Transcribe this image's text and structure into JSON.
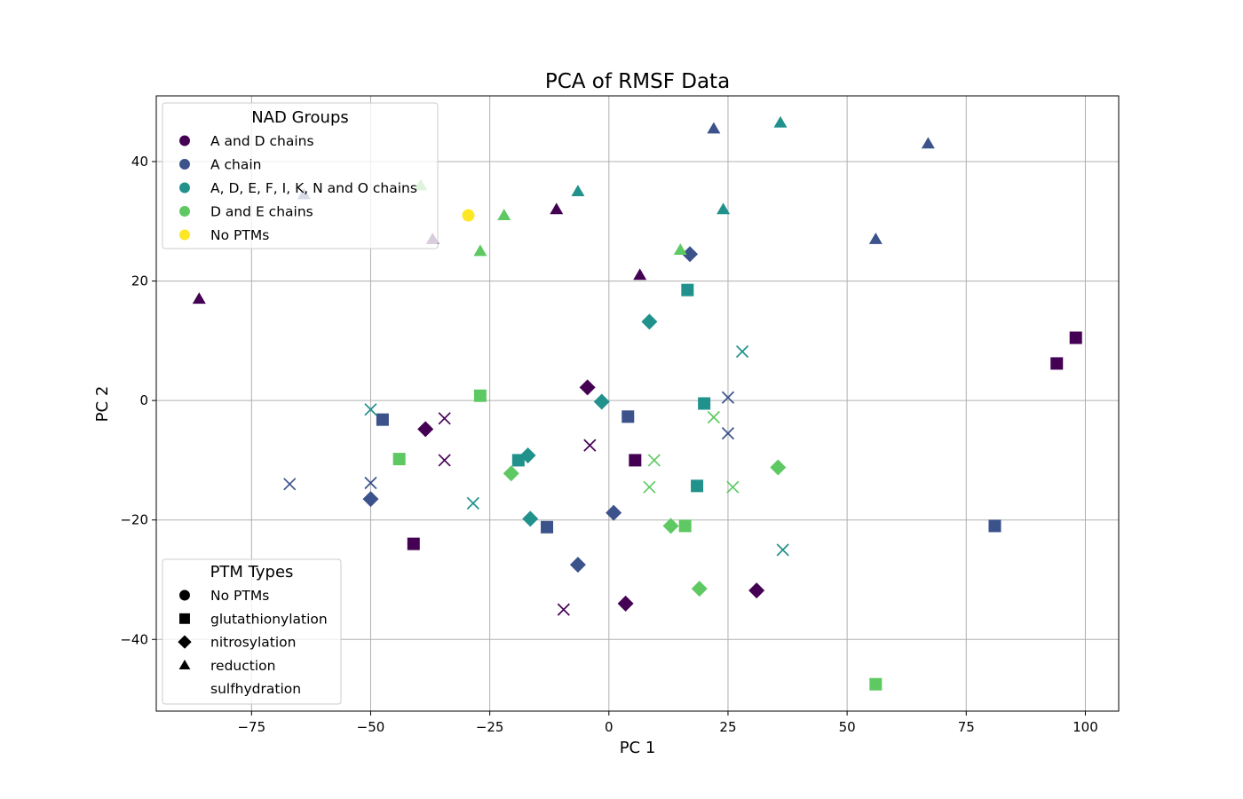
{
  "chart_data": {
    "type": "scatter",
    "title": "PCA of RMSF Data",
    "xlabel": "PC 1",
    "ylabel": "PC 2",
    "xlim": [
      -95,
      107
    ],
    "ylim": [
      -52,
      51
    ],
    "xticks": [
      -75,
      -50,
      -25,
      0,
      25,
      50,
      75,
      100
    ],
    "yticks": [
      -40,
      -20,
      0,
      20,
      40
    ],
    "xtick_labels": [
      "−75",
      "−50",
      "−25",
      "0",
      "25",
      "50",
      "75",
      "100"
    ],
    "ytick_labels": [
      "−40",
      "−20",
      "0",
      "20",
      "40"
    ],
    "grid": true,
    "legends": [
      {
        "title": "NAD Groups",
        "placement": "top-left",
        "entries": [
          {
            "label": "A and D chains",
            "color": "#440154"
          },
          {
            "label": "A chain",
            "color": "#3b528b"
          },
          {
            "label": "A, D, E, F, I, K, N and O chains",
            "color": "#21918c"
          },
          {
            "label": "D and E chains",
            "color": "#5ec962"
          },
          {
            "label": "No PTMs",
            "color": "#fde725"
          }
        ]
      },
      {
        "title": "PTM Types",
        "placement": "lower-left",
        "entries": [
          {
            "label": "No PTMs",
            "marker": "circle"
          },
          {
            "label": "glutathionylation",
            "marker": "square"
          },
          {
            "label": "nitrosylation",
            "marker": "diamond"
          },
          {
            "label": "reduction",
            "marker": "triangle"
          },
          {
            "label": "sulfhydration",
            "marker": "x"
          }
        ]
      }
    ],
    "series": [
      {
        "name": "A and D chains",
        "color": "#440154",
        "points": [
          {
            "x": -86,
            "y": 17,
            "marker": "triangle"
          },
          {
            "x": -37,
            "y": 27,
            "marker": "triangle"
          },
          {
            "x": -11,
            "y": 32,
            "marker": "triangle"
          },
          {
            "x": 6.5,
            "y": 21,
            "marker": "triangle"
          },
          {
            "x": -4.5,
            "y": 2.2,
            "marker": "diamond"
          },
          {
            "x": -38.5,
            "y": -4.8,
            "marker": "diamond"
          },
          {
            "x": 31,
            "y": -31.8,
            "marker": "diamond"
          },
          {
            "x": 3.5,
            "y": -34,
            "marker": "diamond"
          },
          {
            "x": 98,
            "y": 10.5,
            "marker": "square"
          },
          {
            "x": 94,
            "y": 6.2,
            "marker": "square"
          },
          {
            "x": 5.5,
            "y": -10,
            "marker": "square"
          },
          {
            "x": -41,
            "y": -24,
            "marker": "square"
          },
          {
            "x": -34.5,
            "y": -3,
            "marker": "x"
          },
          {
            "x": -34.5,
            "y": -10,
            "marker": "x"
          },
          {
            "x": -4,
            "y": -7.5,
            "marker": "x"
          },
          {
            "x": -9.5,
            "y": -35,
            "marker": "x"
          }
        ]
      },
      {
        "name": "A chain",
        "color": "#3b528b",
        "points": [
          {
            "x": 22,
            "y": 45.5,
            "marker": "triangle"
          },
          {
            "x": 67,
            "y": 43,
            "marker": "triangle"
          },
          {
            "x": 56,
            "y": 27,
            "marker": "triangle"
          },
          {
            "x": -64,
            "y": 34.5,
            "marker": "triangle"
          },
          {
            "x": 17,
            "y": 24.5,
            "marker": "diamond"
          },
          {
            "x": -50,
            "y": -16.5,
            "marker": "diamond"
          },
          {
            "x": 1,
            "y": -18.8,
            "marker": "diamond"
          },
          {
            "x": -6.5,
            "y": -27.5,
            "marker": "diamond"
          },
          {
            "x": -47.5,
            "y": -3.2,
            "marker": "square"
          },
          {
            "x": 4,
            "y": -2.7,
            "marker": "square"
          },
          {
            "x": -13,
            "y": -21.2,
            "marker": "square"
          },
          {
            "x": 81,
            "y": -21,
            "marker": "square"
          },
          {
            "x": -67,
            "y": -14,
            "marker": "x"
          },
          {
            "x": -50,
            "y": -13.8,
            "marker": "x"
          },
          {
            "x": 25,
            "y": 0.5,
            "marker": "x"
          },
          {
            "x": 25,
            "y": -5.5,
            "marker": "x"
          }
        ]
      },
      {
        "name": "A, D, E, F, I, K, N and O chains",
        "color": "#21918c",
        "points": [
          {
            "x": 36,
            "y": 46.5,
            "marker": "triangle"
          },
          {
            "x": -6.5,
            "y": 35,
            "marker": "triangle"
          },
          {
            "x": 24,
            "y": 32,
            "marker": "triangle"
          },
          {
            "x": 8.5,
            "y": 13.2,
            "marker": "diamond"
          },
          {
            "x": -1.5,
            "y": -0.2,
            "marker": "diamond"
          },
          {
            "x": -17,
            "y": -9.2,
            "marker": "diamond"
          },
          {
            "x": -16.5,
            "y": -19.8,
            "marker": "diamond"
          },
          {
            "x": 16.5,
            "y": 18.5,
            "marker": "square"
          },
          {
            "x": 20,
            "y": -0.5,
            "marker": "square"
          },
          {
            "x": -19,
            "y": -10,
            "marker": "square"
          },
          {
            "x": 18.5,
            "y": -14.3,
            "marker": "square"
          },
          {
            "x": 28,
            "y": 8.2,
            "marker": "x"
          },
          {
            "x": -50,
            "y": -1.5,
            "marker": "x"
          },
          {
            "x": -28.5,
            "y": -17.2,
            "marker": "x"
          },
          {
            "x": 36.5,
            "y": -25,
            "marker": "x"
          }
        ]
      },
      {
        "name": "D and E chains",
        "color": "#5ec962",
        "points": [
          {
            "x": -22,
            "y": 31,
            "marker": "triangle"
          },
          {
            "x": -27,
            "y": 25,
            "marker": "triangle"
          },
          {
            "x": 15,
            "y": 25.2,
            "marker": "triangle"
          },
          {
            "x": -39.5,
            "y": 36,
            "marker": "triangle"
          },
          {
            "x": -20.5,
            "y": -12.2,
            "marker": "diamond"
          },
          {
            "x": 35.5,
            "y": -11.2,
            "marker": "diamond"
          },
          {
            "x": 13,
            "y": -21,
            "marker": "diamond"
          },
          {
            "x": 19,
            "y": -31.5,
            "marker": "diamond"
          },
          {
            "x": -27,
            "y": 0.8,
            "marker": "square"
          },
          {
            "x": -44,
            "y": -9.8,
            "marker": "square"
          },
          {
            "x": 16,
            "y": -21,
            "marker": "square"
          },
          {
            "x": 56,
            "y": -47.5,
            "marker": "square"
          },
          {
            "x": 9.5,
            "y": -10,
            "marker": "x"
          },
          {
            "x": 22,
            "y": -2.8,
            "marker": "x"
          },
          {
            "x": 8.5,
            "y": -14.5,
            "marker": "x"
          },
          {
            "x": 26,
            "y": -14.5,
            "marker": "x"
          }
        ]
      },
      {
        "name": "No PTMs",
        "color": "#fde725",
        "points": [
          {
            "x": -29.5,
            "y": 31,
            "marker": "circle"
          }
        ]
      }
    ]
  }
}
